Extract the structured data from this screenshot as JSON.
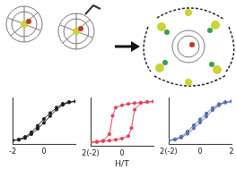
{
  "chart_data": [
    {
      "type": "line",
      "color": "#222222",
      "marker": "circle",
      "grid": false,
      "tick_labels": "x",
      "xlim": [
        -2,
        2
      ],
      "xticks": [
        -2,
        0
      ],
      "ylim": [
        -1.2,
        1.2
      ],
      "x": [
        -2,
        -1.6,
        -1.2,
        -0.8,
        -0.4,
        0,
        0.4,
        0.8,
        1.2,
        1.6,
        2,
        1.6,
        1.2,
        0.8,
        0.4,
        0,
        -0.4,
        -0.8,
        -1.2,
        -1.6,
        -2
      ],
      "values": [
        -1,
        -0.97,
        -0.88,
        -0.68,
        -0.4,
        -0.1,
        0.25,
        0.58,
        0.82,
        0.95,
        1,
        0.97,
        0.88,
        0.68,
        0.4,
        0.1,
        -0.25,
        -0.58,
        -0.82,
        -0.95,
        -1
      ]
    },
    {
      "type": "line",
      "color": "#e8405a",
      "marker": "circle",
      "grid": false,
      "tick_labels": "x",
      "x_label": "H/T",
      "xlim": [
        -2,
        2
      ],
      "xticks": [
        {
          "value": -2,
          "label": "2(-2)"
        },
        0
      ],
      "ylim": [
        -1.2,
        1.2
      ],
      "x": [
        -2,
        -1.6,
        -1.2,
        -0.8,
        -0.4,
        0,
        0.4,
        0.6,
        0.8,
        1.2,
        1.6,
        2,
        1.6,
        1.2,
        0.8,
        0.4,
        0,
        -0.4,
        -0.6,
        -0.8,
        -1.2,
        -1.6,
        -2
      ],
      "values": [
        -1,
        -0.98,
        -0.95,
        -0.92,
        -0.88,
        -0.82,
        -0.7,
        -0.3,
        0.6,
        0.93,
        0.98,
        1,
        0.98,
        0.95,
        0.92,
        0.88,
        0.82,
        0.7,
        0.3,
        -0.6,
        -0.93,
        -0.98,
        -1
      ]
    },
    {
      "type": "line",
      "color": "#5a6fae",
      "marker": "circle",
      "grid": false,
      "tick_labels": "x",
      "xlim": [
        -2,
        2
      ],
      "xticks": [
        {
          "value": -2,
          "label": "2(-2)"
        },
        0,
        2
      ],
      "ylim": [
        -1.2,
        1.2
      ],
      "x": [
        -2,
        -1.6,
        -1.2,
        -0.8,
        -0.4,
        0,
        0.4,
        0.8,
        1.2,
        1.6,
        2,
        1.6,
        1.2,
        0.8,
        0.4,
        0,
        -0.4,
        -0.8,
        -1.2,
        -1.6,
        -2
      ],
      "values": [
        -1,
        -0.96,
        -0.86,
        -0.66,
        -0.38,
        -0.08,
        0.22,
        0.55,
        0.8,
        0.94,
        1,
        0.96,
        0.86,
        0.66,
        0.38,
        0.08,
        -0.22,
        -0.55,
        -0.8,
        -0.94,
        -1
      ]
    }
  ]
}
